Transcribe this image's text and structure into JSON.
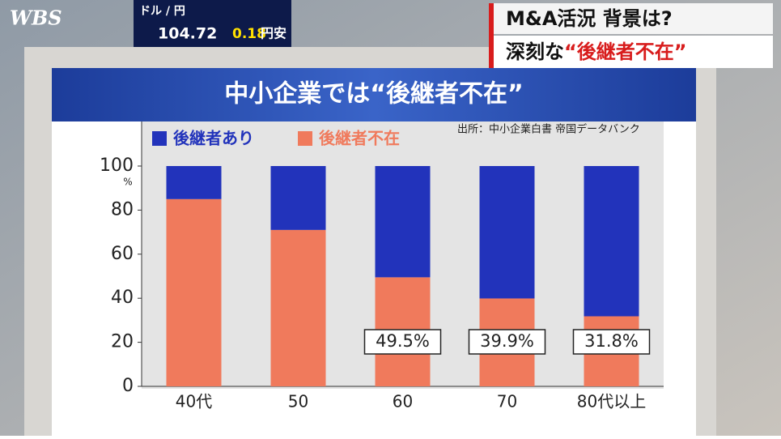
{
  "logo": "WBS",
  "ticker": {
    "pair": "ドル / 円",
    "rate": "104.72",
    "change": "0.18",
    "direction": "円安"
  },
  "headline": {
    "line1": "M&A活況 背景は?",
    "line2a": "深刻な",
    "line2b": "“後継者不在”"
  },
  "chart_data": {
    "type": "stacked_bar",
    "title": "中小企業では“後継者不在”",
    "source": "出所：中小企業白書 帝国データバンク",
    "y_unit": "%",
    "categories": [
      "40代",
      "50",
      "60",
      "70",
      "80代以上"
    ],
    "series": [
      {
        "name": "後継者あり",
        "color": "#2233bb",
        "values": [
          15,
          29,
          50.5,
          60.1,
          68.2
        ]
      },
      {
        "name": "後継者不在",
        "color": "#f07a5c",
        "values": [
          85,
          71,
          49.5,
          39.9,
          31.8
        ],
        "value_labels": [
          null,
          null,
          "49.5%",
          "39.9%",
          "31.8%"
        ]
      }
    ],
    "ylim": [
      0,
      100
    ],
    "yticks": [
      0,
      20,
      40,
      60,
      80,
      100
    ]
  }
}
